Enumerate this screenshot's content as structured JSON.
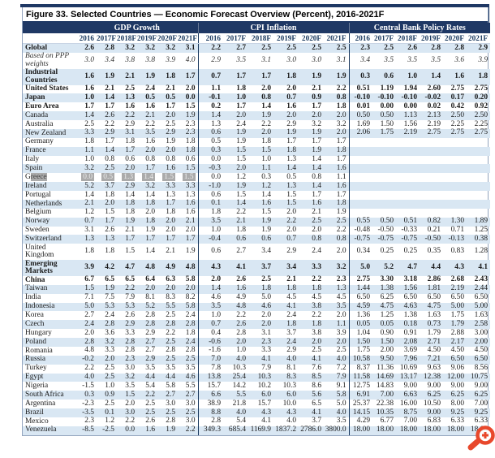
{
  "figure": {
    "title": "Figure 33. Selected Countries — Economic Forecast Overview (Percent), 2016-2021F"
  },
  "colors": {
    "header_navy": "#1F3864",
    "row_stripe_blue": "#D9E7F3",
    "selection_gray": "#ABABAB",
    "zoom_icon_orange": "#E8482C"
  },
  "icons": {
    "zoom_in": "magnifier-plus"
  },
  "table": {
    "groups": [
      {
        "label": "GDP Growth"
      },
      {
        "label": "CPI Inflation"
      },
      {
        "label": "Central Bank Policy Rates"
      }
    ],
    "years": [
      "2016",
      "2017F",
      "2018F",
      "2019F",
      "2020F",
      "2021F"
    ],
    "rows": [
      {
        "label": "Global",
        "bold": true,
        "gdp": [
          "2.6",
          "2.8",
          "3.2",
          "3.2",
          "3.2",
          "3.1"
        ],
        "cpi": [
          "2.2",
          "2.7",
          "2.5",
          "2.5",
          "2.5",
          "2.5"
        ],
        "cbpr": [
          "2.3",
          "2.5",
          "2.6",
          "2.8",
          "2.8",
          "2.9"
        ]
      },
      {
        "label": "Based on PPP weights",
        "italic": true,
        "gdp": [
          "3.0",
          "3.4",
          "3.8",
          "3.8",
          "3.9",
          "4.0"
        ],
        "cpi": [
          "2.9",
          "3.5",
          "3.1",
          "3.0",
          "3.0",
          "3.1"
        ],
        "cbpr": [
          "3.4",
          "3.5",
          "3.5",
          "3.5",
          "3.6",
          "3.9"
        ]
      },
      {
        "label": "Industrial Countries",
        "bold": true,
        "gdp": [
          "1.6",
          "1.9",
          "2.1",
          "1.9",
          "1.8",
          "1.7"
        ],
        "cpi": [
          "0.7",
          "1.7",
          "1.7",
          "1.8",
          "1.9",
          "1.9"
        ],
        "cbpr": [
          "0.3",
          "0.6",
          "1.0",
          "1.4",
          "1.6",
          "1.8"
        ]
      },
      {
        "label": "United States",
        "bold": true,
        "gdp": [
          "1.6",
          "2.1",
          "2.5",
          "2.4",
          "2.1",
          "2.0"
        ],
        "cpi": [
          "1.1",
          "1.8",
          "2.0",
          "2.0",
          "2.1",
          "2.2"
        ],
        "cbpr": [
          "0.51",
          "1.19",
          "1.94",
          "2.60",
          "2.75",
          "2.75"
        ]
      },
      {
        "label": "Japan",
        "bold": true,
        "gdp": [
          "1.0",
          "1.4",
          "1.3",
          "0.5",
          "0.5",
          "0.0"
        ],
        "cpi": [
          "-0.1",
          "1.0",
          "0.8",
          "0.7",
          "0.9",
          "0.8"
        ],
        "cbpr": [
          "-0.10",
          "-0.10",
          "-0.10",
          "-0.02",
          "0.17",
          "0.20"
        ]
      },
      {
        "label": "Euro Area",
        "bold": true,
        "gdp": [
          "1.7",
          "1.7",
          "1.6",
          "1.6",
          "1.7",
          "1.5"
        ],
        "cpi": [
          "0.2",
          "1.7",
          "1.4",
          "1.6",
          "1.7",
          "1.8"
        ],
        "cbpr": [
          "0.01",
          "0.00",
          "0.00",
          "0.02",
          "0.42",
          "0.92"
        ]
      },
      {
        "label": "Canada",
        "gdp": [
          "1.4",
          "2.6",
          "2.2",
          "2.1",
          "2.0",
          "1.9"
        ],
        "cpi": [
          "1.4",
          "2.0",
          "1.9",
          "2.0",
          "2.0",
          "2.0"
        ],
        "cbpr": [
          "0.50",
          "0.50",
          "1.13",
          "2.13",
          "2.50",
          "2.50"
        ]
      },
      {
        "label": "Australia",
        "gdp": [
          "2.5",
          "2.2",
          "2.9",
          "2.2",
          "2.5",
          "2.3"
        ],
        "cpi": [
          "1.3",
          "2.4",
          "2.2",
          "2.9",
          "3.2",
          "3.2"
        ],
        "cbpr": [
          "1.69",
          "1.50",
          "1.56",
          "2.19",
          "2.25",
          "2.25"
        ]
      },
      {
        "label": "New Zealand",
        "gdp": [
          "3.3",
          "2.9",
          "3.1",
          "3.5",
          "2.9",
          "2.3"
        ],
        "cpi": [
          "0.6",
          "1.9",
          "2.0",
          "1.9",
          "1.9",
          "2.0"
        ],
        "cbpr": [
          "2.06",
          "1.75",
          "2.19",
          "2.75",
          "2.75",
          "2.75"
        ]
      },
      {
        "label": "Germany",
        "gdp": [
          "1.8",
          "1.7",
          "1.8",
          "1.6",
          "1.9",
          "1.8"
        ],
        "cpi": [
          "0.5",
          "1.9",
          "1.8",
          "1.7",
          "1.7",
          "1.7"
        ],
        "cbpr": []
      },
      {
        "label": "France",
        "gdp": [
          "1.1",
          "1.4",
          "1.7",
          "2.0",
          "2.0",
          "1.8"
        ],
        "cpi": [
          "0.3",
          "1.5",
          "1.5",
          "1.8",
          "1.9",
          "1.8"
        ],
        "cbpr": []
      },
      {
        "label": "Italy",
        "gdp": [
          "1.0",
          "0.8",
          "0.6",
          "0.8",
          "0.8",
          "0.6"
        ],
        "cpi": [
          "0.0",
          "1.5",
          "1.0",
          "1.3",
          "1.4",
          "1.7"
        ],
        "cbpr": []
      },
      {
        "label": "Spain",
        "gdp": [
          "3.2",
          "2.5",
          "2.0",
          "1.7",
          "1.6",
          "1.5"
        ],
        "cpi": [
          "-0.3",
          "2.0",
          "1.1",
          "1.4",
          "1.4",
          "1.6"
        ],
        "cbpr": []
      },
      {
        "label": "Greece",
        "highlight": true,
        "gdp": [
          "0.0",
          "0.5",
          "1.3",
          "1.4",
          "1.5",
          "1.5"
        ],
        "cpi": [
          "0.0",
          "1.2",
          "0.3",
          "0.5",
          "0.8",
          "1.1"
        ],
        "cbpr": []
      },
      {
        "label": "Ireland",
        "gdp": [
          "5.2",
          "3.7",
          "2.9",
          "3.2",
          "3.3",
          "3.3"
        ],
        "cpi": [
          "-1.0",
          "1.9",
          "1.2",
          "1.3",
          "1.4",
          "1.6"
        ],
        "cbpr": []
      },
      {
        "label": "Portugal",
        "gdp": [
          "1.4",
          "1.8",
          "1.4",
          "1.4",
          "1.3",
          "1.3"
        ],
        "cpi": [
          "0.6",
          "1.5",
          "1.4",
          "1.5",
          "1.7",
          "1.7"
        ],
        "cbpr": []
      },
      {
        "label": "Netherlands",
        "gdp": [
          "2.1",
          "2.0",
          "1.8",
          "1.8",
          "1.7",
          "1.6"
        ],
        "cpi": [
          "0.1",
          "1.4",
          "1.6",
          "1.5",
          "1.6",
          "1.8"
        ],
        "cbpr": []
      },
      {
        "label": "Belgium",
        "gdp": [
          "1.2",
          "1.5",
          "1.8",
          "2.0",
          "1.8",
          "1.6"
        ],
        "cpi": [
          "1.8",
          "2.2",
          "1.5",
          "2.0",
          "2.1",
          "1.9"
        ],
        "cbpr": []
      },
      {
        "label": "Norway",
        "gdp": [
          "0.7",
          "1.7",
          "1.9",
          "1.8",
          "2.0",
          "2.1"
        ],
        "cpi": [
          "3.5",
          "2.1",
          "1.9",
          "2.2",
          "2.5",
          "2.5"
        ],
        "cbpr": [
          "0.55",
          "0.50",
          "0.51",
          "0.82",
          "1.30",
          "1.89"
        ]
      },
      {
        "label": "Sweden",
        "gdp": [
          "3.1",
          "2.6",
          "2.1",
          "1.9",
          "2.0",
          "2.0"
        ],
        "cpi": [
          "1.0",
          "1.8",
          "1.9",
          "2.0",
          "2.0",
          "2.2"
        ],
        "cbpr": [
          "-0.48",
          "-0.50",
          "-0.33",
          "0.21",
          "0.71",
          "1.25"
        ]
      },
      {
        "label": "Switzerland",
        "gdp": [
          "1.3",
          "1.3",
          "1.7",
          "1.7",
          "1.7",
          "1.7"
        ],
        "cpi": [
          "-0.4",
          "0.6",
          "0.6",
          "0.7",
          "0.8",
          "0.8"
        ],
        "cbpr": [
          "-0.75",
          "-0.75",
          "-0.75",
          "-0.50",
          "-0.13",
          "0.38"
        ]
      },
      {
        "label": "United Kingdom",
        "gdp": [
          "1.8",
          "1.8",
          "1.5",
          "1.4",
          "2.1",
          "1.9"
        ],
        "cpi": [
          "0.6",
          "2.7",
          "3.4",
          "2.9",
          "2.4",
          "2.0"
        ],
        "cbpr": [
          "0.34",
          "0.25",
          "0.25",
          "0.35",
          "0.83",
          "1.28"
        ]
      },
      {
        "label": "Emerging Markets",
        "bold": true,
        "gdp": [
          "3.9",
          "4.2",
          "4.7",
          "4.8",
          "4.9",
          "4.8"
        ],
        "cpi": [
          "4.3",
          "4.1",
          "3.7",
          "3.4",
          "3.3",
          "3.2"
        ],
        "cbpr": [
          "5.0",
          "5.2",
          "4.7",
          "4.4",
          "4.3",
          "4.1"
        ]
      },
      {
        "label": "China",
        "bold": true,
        "gdp": [
          "6.7",
          "6.5",
          "6.5",
          "6.4",
          "6.3",
          "5.8"
        ],
        "cpi": [
          "2.0",
          "2.6",
          "2.5",
          "2.1",
          "2.2",
          "2.3"
        ],
        "cbpr": [
          "2.75",
          "3.30",
          "3.18",
          "2.86",
          "2.68",
          "2.43"
        ]
      },
      {
        "label": "Taiwan",
        "gdp": [
          "1.5",
          "1.9",
          "2.2",
          "2.0",
          "2.0",
          "2.0"
        ],
        "cpi": [
          "1.4",
          "1.6",
          "1.8",
          "1.8",
          "1.8",
          "1.3"
        ],
        "cbpr": [
          "1.44",
          "1.38",
          "1.56",
          "1.81",
          "2.19",
          "2.44"
        ]
      },
      {
        "label": "India",
        "gdp": [
          "7.1",
          "7.5",
          "7.9",
          "8.1",
          "8.3",
          "8.2"
        ],
        "cpi": [
          "4.6",
          "4.9",
          "5.0",
          "4.5",
          "4.5",
          "4.5"
        ],
        "cbpr": [
          "6.50",
          "6.25",
          "6.50",
          "6.50",
          "6.50",
          "6.50"
        ]
      },
      {
        "label": "Indonesia",
        "gdp": [
          "5.0",
          "5.3",
          "5.3",
          "5.2",
          "5.5",
          "5.8"
        ],
        "cpi": [
          "3.5",
          "4.8",
          "4.6",
          "4.1",
          "3.8",
          "3.5"
        ],
        "cbpr": [
          "4.59",
          "4.75",
          "4.63",
          "4.75",
          "5.00",
          "5.00"
        ]
      },
      {
        "label": "Korea",
        "gdp": [
          "2.7",
          "2.4",
          "2.6",
          "2.8",
          "2.5",
          "2.4"
        ],
        "cpi": [
          "1.0",
          "2.2",
          "2.0",
          "2.4",
          "2.2",
          "2.0"
        ],
        "cbpr": [
          "1.36",
          "1.25",
          "1.38",
          "1.63",
          "1.75",
          "1.63"
        ]
      },
      {
        "label": "Czech",
        "gdp": [
          "2.4",
          "2.8",
          "2.9",
          "2.8",
          "2.8",
          "2.8"
        ],
        "cpi": [
          "0.7",
          "2.6",
          "2.0",
          "1.8",
          "1.8",
          "1.1"
        ],
        "cbpr": [
          "0.05",
          "0.05",
          "0.18",
          "0.73",
          "1.79",
          "2.58"
        ]
      },
      {
        "label": "Hungary",
        "gdp": [
          "2.0",
          "3.6",
          "3.3",
          "2.9",
          "2.2",
          "1.8"
        ],
        "cpi": [
          "0.4",
          "2.8",
          "3.1",
          "3.7",
          "3.8",
          "3.9"
        ],
        "cbpr": [
          "1.04",
          "0.90",
          "0.91",
          "1.79",
          "2.88",
          "3.00"
        ]
      },
      {
        "label": "Poland",
        "gdp": [
          "2.8",
          "3.2",
          "2.8",
          "2.7",
          "2.5",
          "2.4"
        ],
        "cpi": [
          "-0.6",
          "2.0",
          "2.3",
          "2.4",
          "2.0",
          "2.0"
        ],
        "cbpr": [
          "1.50",
          "1.50",
          "2.08",
          "2.71",
          "2.17",
          "2.00"
        ]
      },
      {
        "label": "Romania",
        "gdp": [
          "4.8",
          "3.3",
          "2.8",
          "2.7",
          "2.8",
          "2.8"
        ],
        "cpi": [
          "-1.6",
          "1.0",
          "3.3",
          "2.9",
          "2.5",
          "2.5"
        ],
        "cbpr": [
          "1.75",
          "2.00",
          "3.69",
          "4.50",
          "4.50",
          "4.50"
        ]
      },
      {
        "label": "Russia",
        "gdp": [
          "-0.2",
          "2.0",
          "2.3",
          "2.9",
          "2.5",
          "2.5"
        ],
        "cpi": [
          "7.0",
          "4.0",
          "4.1",
          "4.0",
          "4.1",
          "4.0"
        ],
        "cbpr": [
          "10.58",
          "9.50",
          "7.96",
          "7.21",
          "6.50",
          "6.50"
        ]
      },
      {
        "label": "Turkey",
        "gdp": [
          "2.2",
          "2.5",
          "3.0",
          "3.5",
          "3.5",
          "3.5"
        ],
        "cpi": [
          "7.8",
          "10.3",
          "7.9",
          "8.1",
          "7.6",
          "7.2"
        ],
        "cbpr": [
          "8.37",
          "11.36",
          "10.69",
          "9.63",
          "9.06",
          "8.56"
        ]
      },
      {
        "label": "Egypt",
        "gdp": [
          "4.0",
          "2.5",
          "3.2",
          "4.4",
          "4.4",
          "4.6"
        ],
        "cpi": [
          "13.8",
          "25.4",
          "10.3",
          "8.3",
          "8.5",
          "7.9"
        ],
        "cbpr": [
          "11.58",
          "14.69",
          "13.17",
          "12.38",
          "12.00",
          "10.75"
        ]
      },
      {
        "label": "Nigeria",
        "gdp": [
          "-1.5",
          "1.0",
          "3.5",
          "5.4",
          "5.8",
          "5.5"
        ],
        "cpi": [
          "15.7",
          "14.2",
          "10.2",
          "10.3",
          "8.6",
          "9.1"
        ],
        "cbpr": [
          "12.75",
          "14.83",
          "9.00",
          "9.00",
          "9.00",
          "9.00"
        ]
      },
      {
        "label": "South Africa",
        "gdp": [
          "0.3",
          "0.9",
          "1.5",
          "2.2",
          "2.7",
          "2.7"
        ],
        "cpi": [
          "6.6",
          "5.5",
          "6.0",
          "6.0",
          "5.6",
          "5.8"
        ],
        "cbpr": [
          "6.91",
          "7.00",
          "6.63",
          "6.25",
          "6.25",
          "6.25"
        ]
      },
      {
        "label": "Argentina",
        "gdp": [
          "-2.3",
          "2.5",
          "2.0",
          "2.5",
          "3.0",
          "3.0"
        ],
        "cpi": [
          "38.9",
          "21.8",
          "15.7",
          "10.0",
          "6.5",
          "5.0"
        ],
        "cbpr": [
          "25.37",
          "22.38",
          "16.00",
          "10.50",
          "8.00",
          "7.00"
        ]
      },
      {
        "label": "Brazil",
        "gdp": [
          "-3.5",
          "0.1",
          "3.0",
          "2.5",
          "2.5",
          "2.5"
        ],
        "cpi": [
          "8.8",
          "4.0",
          "4.3",
          "4.3",
          "4.1",
          "4.0"
        ],
        "cbpr": [
          "14.15",
          "10.35",
          "8.75",
          "9.00",
          "9.25",
          "9.25"
        ]
      },
      {
        "label": "Mexico",
        "gdp": [
          "2.3",
          "1.2",
          "2.2",
          "2.6",
          "2.8",
          "3.0"
        ],
        "cpi": [
          "2.8",
          "5.4",
          "4.1",
          "4.0",
          "3.7",
          "3.5"
        ],
        "cbpr": [
          "4.29",
          "6.77",
          "7.00",
          "6.83",
          "6.33",
          "6.33"
        ]
      },
      {
        "label": "Venezuela",
        "gdp": [
          "-8.5",
          "-2.5",
          "0.0",
          "1.6",
          "1.9",
          "2.2"
        ],
        "cpi": [
          "349.3",
          "685.4",
          "1169.9",
          "1837.2",
          "2786.0",
          "3800.0"
        ],
        "cbpr": [
          "18.00",
          "18.00",
          "18.00",
          "18.00",
          "18.00",
          "18.00"
        ]
      }
    ]
  }
}
